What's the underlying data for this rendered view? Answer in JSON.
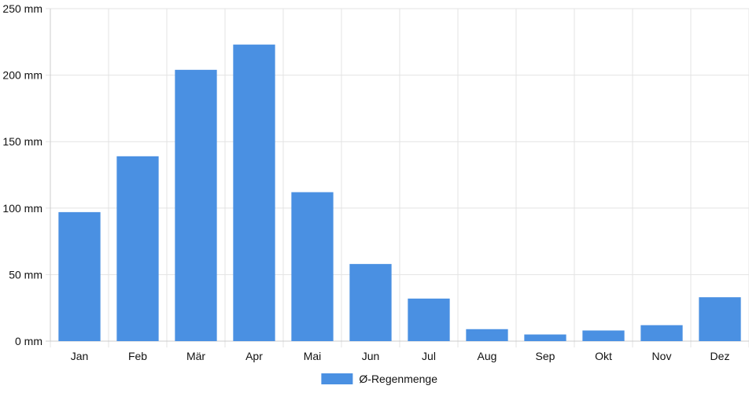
{
  "chart_data": {
    "type": "bar",
    "categories": [
      "Jan",
      "Feb",
      "Mär",
      "Apr",
      "Mai",
      "Jun",
      "Jul",
      "Aug",
      "Sep",
      "Okt",
      "Nov",
      "Dez"
    ],
    "series": [
      {
        "name": "Ø-Regenmenge",
        "color": "#4a90e2",
        "values": [
          97,
          139,
          204,
          223,
          112,
          58,
          32,
          9,
          5,
          8,
          12,
          33
        ]
      }
    ],
    "ylim": [
      0,
      250
    ],
    "yticks": [
      0,
      50,
      100,
      150,
      200,
      250
    ],
    "ytick_labels": [
      "0 mm",
      "50 mm",
      "100 mm",
      "150 mm",
      "200 mm",
      "250 mm"
    ],
    "grid": true,
    "legend_position": "bottom-center"
  }
}
